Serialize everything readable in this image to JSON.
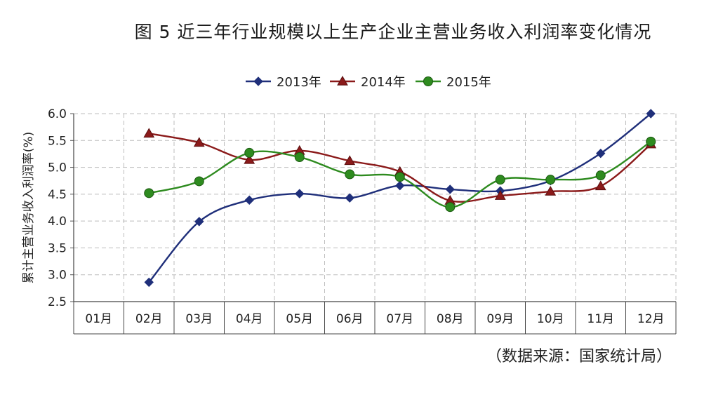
{
  "title": "图 5  近三年行业规模以上生产企业主营业务收入利润率变化情况",
  "source": "（数据来源：国家统计局）",
  "chart_data": {
    "type": "line",
    "ylabel": "累计主营业务收入利润率(%)",
    "xlabel": "",
    "categories": [
      "01月",
      "02月",
      "03月",
      "04月",
      "05月",
      "06月",
      "07月",
      "08月",
      "09月",
      "10月",
      "11月",
      "12月"
    ],
    "ylim": [
      2.5,
      6.0
    ],
    "yticks": [
      "6.0",
      "5.5",
      "5.0",
      "4.5",
      "4.0",
      "3.5",
      "3.0",
      "2.5"
    ],
    "grid": true,
    "legend_position": "top",
    "series": [
      {
        "name": "2013年",
        "color": "#1f2f7a",
        "marker": "diamond",
        "values": [
          null,
          2.86,
          3.99,
          4.39,
          4.51,
          4.43,
          4.66,
          4.59,
          4.56,
          4.75,
          5.26,
          6.0
        ]
      },
      {
        "name": "2014年",
        "color": "#8b1a1a",
        "marker": "triangle",
        "values": [
          null,
          5.63,
          5.46,
          5.14,
          5.31,
          5.12,
          4.92,
          4.38,
          4.47,
          4.55,
          4.65,
          5.43
        ]
      },
      {
        "name": "2015年",
        "color": "#2e8b1f",
        "marker": "circle",
        "values": [
          null,
          4.52,
          4.74,
          5.27,
          5.19,
          4.87,
          4.82,
          4.26,
          4.77,
          4.77,
          4.85,
          5.48
        ]
      }
    ]
  }
}
